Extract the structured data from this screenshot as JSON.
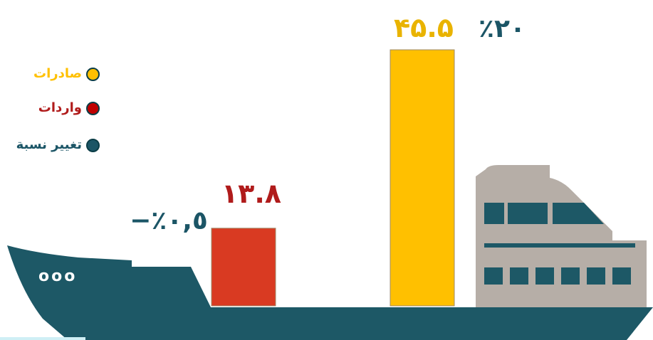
{
  "chart_data": {
    "type": "bar",
    "categories": [
      "واردات",
      "صادرات"
    ],
    "values": [
      13.8,
      45.5
    ],
    "value_labels": [
      "١٣.٨",
      "۴۵.۵"
    ],
    "change_labels": [
      "−٪٠,٥",
      "٪٢٠"
    ],
    "series": [
      {
        "name": "واردات",
        "color": "#d93a22"
      },
      {
        "name": "صادرات",
        "color": "#ffc000"
      }
    ],
    "legend": [
      {
        "label": "صادرات",
        "color": "#ffc000",
        "text_color": "#ffc000"
      },
      {
        "label": "واردات",
        "color": "#c00000",
        "text_color": "#b01b1b"
      },
      {
        "label": "تغيير نسبة",
        "color": "#1b5566",
        "text_color": "#1b5566"
      }
    ],
    "legend_position": "left",
    "title": "",
    "xlabel": "",
    "ylabel": "",
    "ylim": [
      0,
      50
    ],
    "grid": false
  },
  "colors": {
    "ship_hull": "#1d5866",
    "superstructure": "#b6aea7",
    "windows": "#1d5866",
    "value_label_imports": "#b01b1b",
    "value_label_exports": "#e9b300",
    "change_label": "#1b5566"
  },
  "ship": {
    "porthole_glyphs": "ooo"
  }
}
